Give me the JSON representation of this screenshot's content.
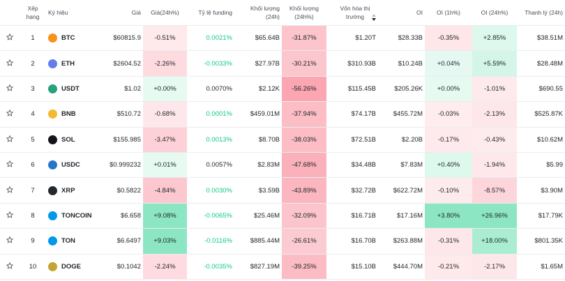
{
  "table": {
    "columns": [
      "Xếp hạng",
      "Ký hiệu",
      "Giá",
      "Giá(24h%)",
      "Tỷ lệ funding",
      "Khối lượng (24h)",
      "Khối lượng (24h%)",
      "Vốn hóa thị trường",
      "OI",
      "OI (1h%)",
      "OI (24h%)",
      "Thanh lý (24h)"
    ],
    "rows": [
      [
        1,
        "BTC",
        "$60815.9",
        "-0.51%",
        "0.0021%",
        "$65.64B",
        "-31.87%",
        "$1.20T",
        "$28.33B",
        "-0.35%",
        "+2.85%",
        "$38.51M"
      ],
      [
        2,
        "ETH",
        "$2604.52",
        "-2.26%",
        "-0.0033%",
        "$27.97B",
        "-30.21%",
        "$310.93B",
        "$10.24B",
        "+0.04%",
        "+5.59%",
        "$28.48M"
      ],
      [
        3,
        "USDT",
        "$1.02",
        "+0.00%",
        "0.0070%",
        "$2.12K",
        "-56.26%",
        "$115.45B",
        "$205.26K",
        "+0.00%",
        "-1.01%",
        "$690.55"
      ],
      [
        4,
        "BNB",
        "$510.72",
        "-0.68%",
        "0.0001%",
        "$459.01M",
        "-37.94%",
        "$74.17B",
        "$455.72M",
        "-0.03%",
        "-2.13%",
        "$525.87K"
      ],
      [
        5,
        "SOL",
        "$155.985",
        "-3.47%",
        "0.0013%",
        "$8.70B",
        "-38.03%",
        "$72.51B",
        "$2.20B",
        "-0.17%",
        "-0.43%",
        "$10.62M"
      ],
      [
        6,
        "USDC",
        "$0.999232",
        "+0.01%",
        "0.0057%",
        "$2.83M",
        "-47.68%",
        "$34.48B",
        "$7.83M",
        "+0.40%",
        "-1.94%",
        "$5.99"
      ],
      [
        7,
        "XRP",
        "$0.5822",
        "-4.84%",
        "0.0030%",
        "$3.59B",
        "-43.89%",
        "$32.72B",
        "$622.72M",
        "-0.10%",
        "-8.57%",
        "$3.90M"
      ],
      [
        8,
        "TONCOIN",
        "$6.658",
        "+9.08%",
        "-0.0065%",
        "$25.46M",
        "-32.09%",
        "$16.71B",
        "$17.16M",
        "+3.80%",
        "+26.96%",
        "$17.79K"
      ],
      [
        9,
        "TON",
        "$6.6497",
        "+9.03%",
        "-0.0116%",
        "$885.44M",
        "-26.61%",
        "$16.70B",
        "$263.88M",
        "-0.31%",
        "+18.00%",
        "$801.35K"
      ],
      [
        10,
        "DOGE",
        "$0.1042",
        "-2.24%",
        "-0.0035%",
        "$827.19M",
        "-39.25%",
        "$15.10B",
        "$444.70M",
        "-0.21%",
        "-2.17%",
        "$1.65M"
      ]
    ],
    "funding_colors": [
      "#0ecb81",
      "#0ecb81",
      "#1e2329",
      "#0ecb81",
      "#0ecb81",
      "#1e2329",
      "#0ecb81",
      "#0ecb81",
      "#0ecb81",
      "#0ecb81"
    ]
  }
}
